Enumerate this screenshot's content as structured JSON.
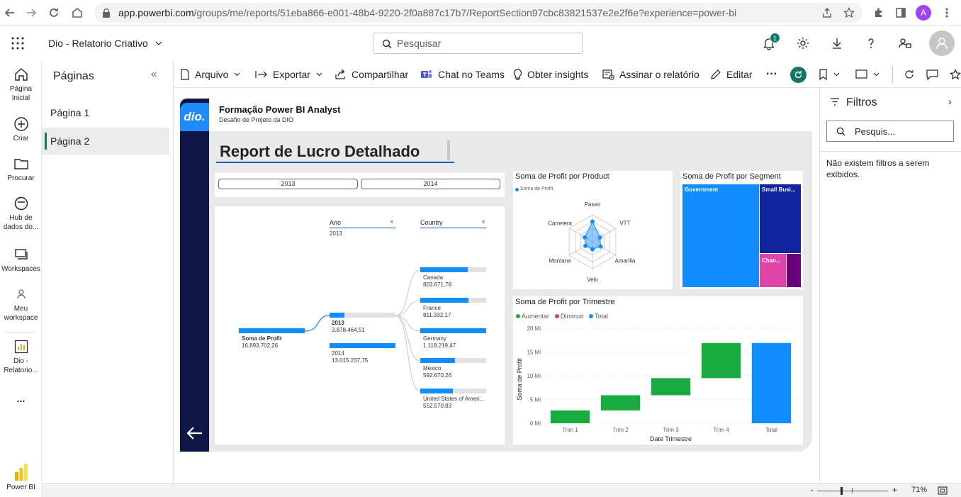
{
  "browser": {
    "url_host": "app.powerbi.com",
    "url_path": "/groups/me/reports/51eba866-e001-48b4-9220-2f0a887c17b7/ReportSection97cbc83821537e2e2f6e?experience=power-bi",
    "profile_initial": "A"
  },
  "header": {
    "report_name": "Dio - Relatorio Criativo",
    "search_placeholder": "Pesquisar",
    "notification_count": "1"
  },
  "rail": {
    "items": [
      {
        "label1": "Página",
        "label2": "Inicial"
      },
      {
        "label1": "Criar",
        "label2": ""
      },
      {
        "label1": "Procurar",
        "label2": ""
      },
      {
        "label1": "Hub de",
        "label2": "dados do..."
      },
      {
        "label1": "Workspaces",
        "label2": ""
      },
      {
        "label1": "Meu",
        "label2": "workspace"
      },
      {
        "label1": "Dio -",
        "label2": "Relatorio..."
      }
    ],
    "more": "...",
    "bottom_label": "Power BI"
  },
  "pages": {
    "title": "Páginas",
    "items": [
      "Página 1",
      "Página 2"
    ],
    "active_index": 1
  },
  "toolbar": {
    "arquivo": "Arquivo",
    "exportar": "Exportar",
    "compartilhar": "Compartilhar",
    "chat_teams": "Chat no Teams",
    "insights": "Obter insights",
    "assinar": "Assinar o relatório",
    "editar": "Editar",
    "more": "···"
  },
  "report": {
    "logo_text": "dio.",
    "title": "Formação Power BI Analyst",
    "subtitle": "Desafio de Projeto da DIO",
    "heading": "Report de Lucro Detalhado",
    "slicer": [
      "2013",
      "2014"
    ],
    "decomp": {
      "col1": "Ano",
      "col1_value": "2013",
      "col2": "Country",
      "root_label": "Soma de Profit",
      "root_value": "16.893.702,26",
      "years": [
        {
          "label": "2013",
          "value": "3.878.464,51",
          "fill": 0.23
        },
        {
          "label": "2014",
          "value": "13.015.237,75",
          "fill": 1.0
        }
      ],
      "countries": [
        {
          "label": "Canada",
          "value": "803.671,78",
          "fill": 0.72
        },
        {
          "label": "France",
          "value": "811.332,17",
          "fill": 0.73
        },
        {
          "label": "Germany",
          "value": "1.118.219,47",
          "fill": 1.0
        },
        {
          "label": "Mexico",
          "value": "592.670,26",
          "fill": 0.53
        },
        {
          "label": "United States of Ameri...",
          "value": "552.570,83",
          "fill": 0.49
        }
      ]
    },
    "radar": {
      "title": "Soma de Profit por Product",
      "legend": "Soma de Profit",
      "axes": [
        "Paseo",
        "VTT",
        "Amarilla",
        "Velo",
        "Montana",
        "Carretera"
      ],
      "values": [
        0.75,
        0.32,
        0.35,
        0.28,
        0.3,
        0.33
      ]
    },
    "treemap": {
      "title": "Soma de Profit por Segment",
      "items": [
        {
          "label": "Government",
          "color": "#118dff"
        },
        {
          "label": "Small Busi...",
          "color": "#12239e"
        },
        {
          "label": "Chan...",
          "color": "#e044a7"
        },
        {
          "label": "",
          "color": "#6b007b"
        }
      ]
    },
    "waterfall": {
      "title": "Soma de Profit por Trimestre",
      "legend": [
        {
          "label": "Aumentar",
          "color": "#1aab40"
        },
        {
          "label": "Diminuir",
          "color": "#d64550"
        },
        {
          "label": "Total",
          "color": "#118dff"
        }
      ],
      "ylabel": "Soma de Profit",
      "xlabel": "Date Trimestre",
      "yticks": [
        "20 Mi",
        "15 Mi",
        "10 Mi",
        "5 Mi",
        "0 Mi"
      ]
    }
  },
  "chart_data": {
    "type": "bar",
    "title": "Soma de Profit por Trimestre",
    "xlabel": "Date Trimestre",
    "ylabel": "Soma de Profit",
    "categories": [
      "Trim 1",
      "Trim 2",
      "Trim 3",
      "Trim 4",
      "Total"
    ],
    "values": [
      2.7,
      3.2,
      3.6,
      7.4,
      16.9
    ],
    "starts": [
      0,
      2.7,
      5.9,
      9.5,
      0
    ],
    "kinds": [
      "increase",
      "increase",
      "increase",
      "increase",
      "total"
    ],
    "ylim": [
      0,
      20
    ],
    "grid": true
  },
  "filters": {
    "title": "Filtros",
    "search_placeholder": "Pesquis...",
    "empty": "Não existem filtros a serem exibidos."
  },
  "status": {
    "zoom": "71%",
    "minus": "-",
    "plus": "+"
  }
}
